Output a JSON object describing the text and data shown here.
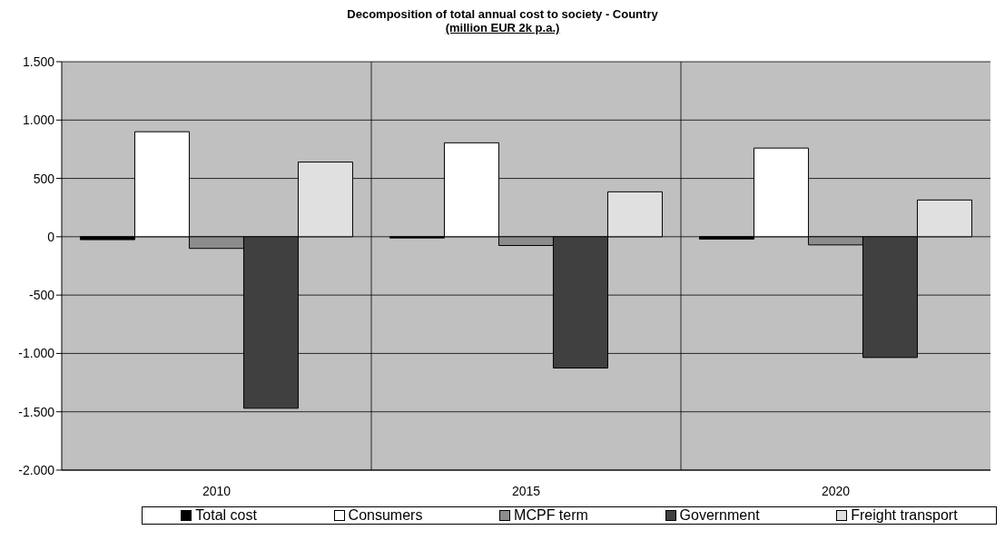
{
  "chart_data": {
    "type": "bar",
    "title": "Decomposition of total annual cost to society - Country",
    "subtitle": "(million EUR 2k p.a.)",
    "categories": [
      "2010",
      "2015",
      "2020"
    ],
    "series": [
      {
        "name": "Total cost",
        "color": "#000000",
        "values": [
          -25,
          -10,
          -20
        ]
      },
      {
        "name": "Consumers",
        "color": "#ffffff",
        "values": [
          900,
          805,
          760
        ]
      },
      {
        "name": "MCPF term",
        "color": "#8c8c8c",
        "values": [
          -100,
          -75,
          -70
        ]
      },
      {
        "name": "Government",
        "color": "#404040",
        "values": [
          -1470,
          -1125,
          -1035
        ]
      },
      {
        "name": "Freight transport",
        "color": "#e0e0e0",
        "values": [
          640,
          385,
          315
        ]
      }
    ],
    "ylim": [
      -2000,
      1500
    ],
    "yticks": [
      {
        "value": -2000,
        "label": "-2.000"
      },
      {
        "value": -1500,
        "label": "-1.500"
      },
      {
        "value": -1000,
        "label": "-1.000"
      },
      {
        "value": -500,
        "label": "-500"
      },
      {
        "value": 0,
        "label": "0"
      },
      {
        "value": 500,
        "label": "500"
      },
      {
        "value": 1000,
        "label": "1.000"
      },
      {
        "value": 1500,
        "label": "1.500"
      }
    ],
    "grid": true,
    "legend": "bottom"
  }
}
